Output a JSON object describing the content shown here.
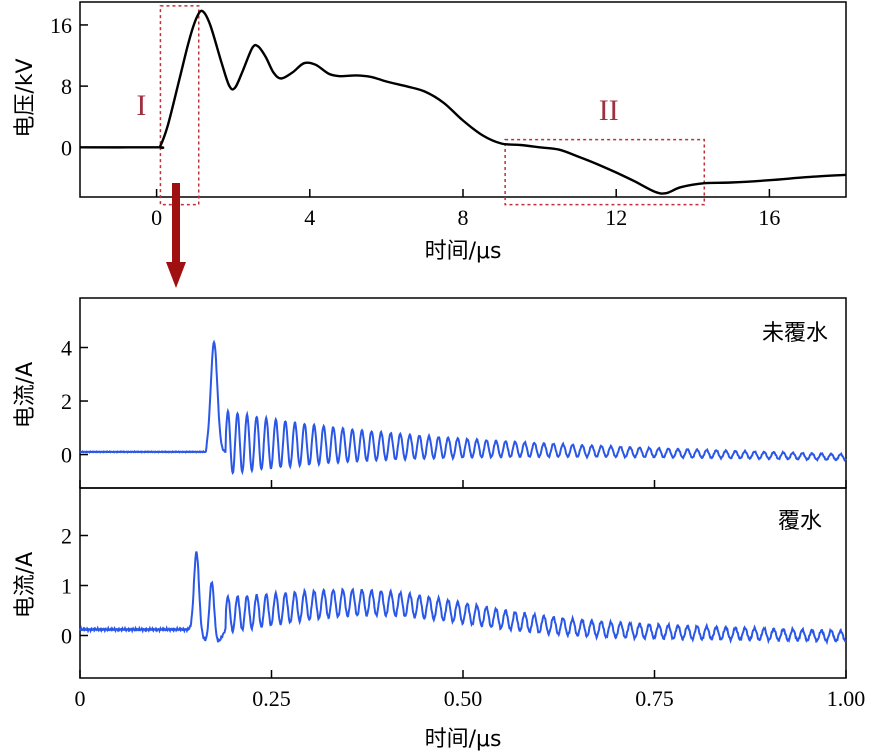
{
  "chart_data": [
    {
      "type": "line",
      "xlabel": "时间/μs",
      "ylabel": "电压/kV",
      "xlim": [
        -2,
        18
      ],
      "ylim": [
        -6.5,
        19
      ],
      "xticks": [
        "0",
        "4",
        "8",
        "12",
        "16"
      ],
      "yticks": [
        "16",
        "8",
        "0"
      ],
      "regions": [
        {
          "label": "I",
          "x_range": [
            0.1,
            1.1
          ],
          "y_range": [
            -7.5,
            18.5
          ]
        },
        {
          "label": "II",
          "x_range": [
            9.1,
            14.3
          ],
          "y_range": [
            -7.5,
            1.0
          ]
        }
      ],
      "series": [
        {
          "color": "#000000",
          "points": [
            [
              -2,
              0
            ],
            [
              0,
              0
            ],
            [
              0.1,
              0.2
            ],
            [
              0.3,
              3
            ],
            [
              0.6,
              9
            ],
            [
              0.85,
              14
            ],
            [
              1.05,
              17
            ],
            [
              1.2,
              17.8
            ],
            [
              1.4,
              16
            ],
            [
              1.7,
              11
            ],
            [
              1.9,
              8
            ],
            [
              2.05,
              7.8
            ],
            [
              2.25,
              10
            ],
            [
              2.5,
              13
            ],
            [
              2.65,
              13.2
            ],
            [
              2.85,
              11.8
            ],
            [
              3.05,
              9.8
            ],
            [
              3.25,
              9
            ],
            [
              3.55,
              9.8
            ],
            [
              3.85,
              11
            ],
            [
              4.15,
              10.8
            ],
            [
              4.5,
              9.6
            ],
            [
              4.8,
              9.3
            ],
            [
              5.2,
              9.4
            ],
            [
              5.6,
              9.2
            ],
            [
              6,
              8.6
            ],
            [
              6.5,
              8
            ],
            [
              7,
              7.3
            ],
            [
              7.5,
              5.8
            ],
            [
              8,
              3.5
            ],
            [
              8.5,
              1.6
            ],
            [
              9,
              0.5
            ],
            [
              9.5,
              0.3
            ],
            [
              10,
              0
            ],
            [
              10.5,
              -0.3
            ],
            [
              11,
              -1.2
            ],
            [
              11.5,
              -2.2
            ],
            [
              12,
              -3.3
            ],
            [
              12.5,
              -4.5
            ],
            [
              13,
              -5.8
            ],
            [
              13.3,
              -6
            ],
            [
              13.7,
              -5.2
            ],
            [
              14.3,
              -4.7
            ],
            [
              15,
              -4.6
            ],
            [
              16,
              -4.3
            ],
            [
              17,
              -3.9
            ],
            [
              18,
              -3.6
            ]
          ]
        }
      ]
    },
    {
      "type": "line",
      "ylabel": "电流/A",
      "xlim": [
        0,
        1.0
      ],
      "ylim": [
        -1.25,
        5.85
      ],
      "yticks": [
        "4",
        "2",
        "0"
      ],
      "annotation": "未覆水",
      "series": [
        {
          "color": "#2a57e8",
          "baseline": 0.1,
          "onset": 0.165,
          "peaks": [
            [
              0.175,
              4.1
            ],
            [
              0.205,
              1.3
            ],
            [
              0.26,
              1.4
            ]
          ],
          "oscillation": {
            "start": 0.19,
            "period": 0.0125,
            "amp_start": 1.1,
            "decay": 4.5,
            "tail": -0.1,
            "end": 1.0
          }
        }
      ]
    },
    {
      "type": "line",
      "xlabel": "时间/μs",
      "ylabel": "电流/A",
      "xlim": [
        0,
        1.0
      ],
      "ylim": [
        -0.85,
        2.95
      ],
      "xticks": [
        "0",
        "0.25",
        "0.50",
        "0.75",
        "1.00"
      ],
      "yticks": [
        "2",
        "1",
        "0"
      ],
      "annotation": "覆水",
      "series": [
        {
          "color": "#2a57e8",
          "baseline": 0.12,
          "peaks": [
            [
              0.152,
              1.55
            ],
            [
              0.172,
              1.3
            ]
          ],
          "oscillation": {
            "start": 0.19,
            "period": 0.0125,
            "amp_start": 0.3,
            "hump_center": 0.38,
            "hump_height": 0.45,
            "tail": -0.05,
            "end": 1.0
          }
        }
      ]
    }
  ]
}
